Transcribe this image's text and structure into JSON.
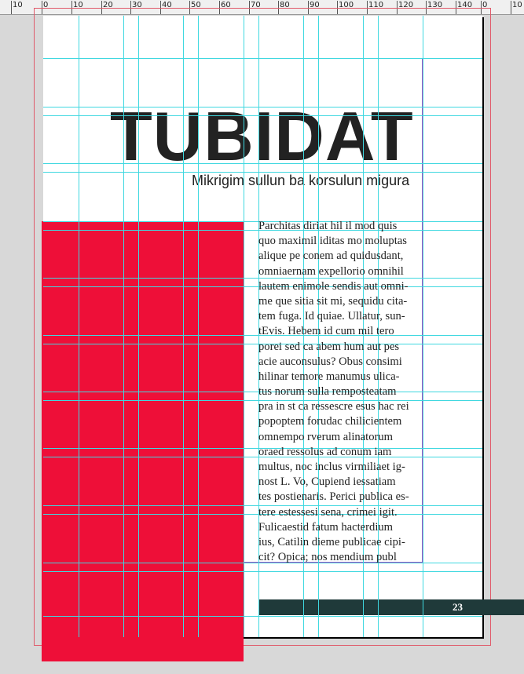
{
  "ruler": {
    "labels": [
      "10",
      "0",
      "10",
      "20",
      "30",
      "40",
      "50",
      "60",
      "70",
      "80",
      "90",
      "100",
      "110",
      "120",
      "130",
      "140",
      "0",
      "10"
    ]
  },
  "document": {
    "title": "TUBIDAT",
    "subtitle": "Mikrigim sullun ba korsulun migura",
    "body_lines": [
      "Parchitas diriat hil il mod quis",
      "quo maximil iditas mo moluptas",
      "alique pe conem ad quidusdant,",
      "omniaernam expellorio omnihil",
      "lautem enimole sendis aut omni-",
      "me que sitia sit mi, sequidu cita-",
      "tem fuga. Id quiae. Ullatur, sun-",
      "tEvis. Hebem id cum mil tero",
      "porei sed ca abem hum aut pes",
      "acie auconsulus? Obus consimi",
      "hilinar temore manumus ulica-",
      "tus norum sulla remposteatam",
      "pra in st ca ressescre esus hac rei",
      "popoptem forudac chilicientem",
      "omnempo rverum alinatorum",
      "oraed ressolus ad conum iam",
      "multus, noc inclus virmiliaet ig-",
      "nost L. Vo, Cupiend iessatiam",
      "tes postienaris. Perici publica es-",
      "tere estessesi sena, crimei igit.",
      "Fulicaestid fatum hacterdium",
      "ius, Catilin dieme publicae cipi-",
      "cit? Opica; nos mendium publ"
    ],
    "page_number": "23"
  },
  "colors": {
    "accent_red": "#ee0f38",
    "footer_bar": "#1f3a3a",
    "guide": "#3fd8e0",
    "margin": "#a050c0"
  }
}
